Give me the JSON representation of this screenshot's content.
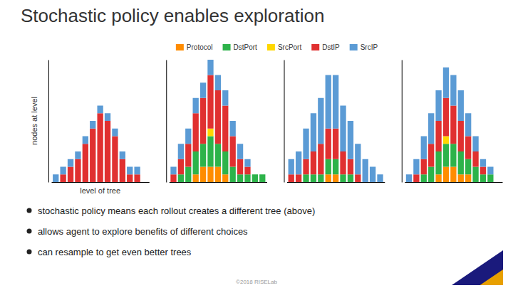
{
  "chart_data": [
    {
      "type": "bar",
      "stacked": true,
      "title": "Stochastic policy enables exploration",
      "y_label": "nodes at level",
      "x_label": "level of tree",
      "categories": [
        null,
        null,
        null,
        null,
        null,
        null,
        null,
        null,
        null,
        null,
        null,
        null,
        null
      ],
      "series": [
        {
          "name": "Protocol",
          "color": "#ff8c00",
          "values": [
            0,
            0,
            0,
            0,
            0,
            0,
            0,
            0,
            0,
            0,
            0,
            0,
            0
          ]
        },
        {
          "name": "DstPort",
          "color": "#2db34a",
          "values": [
            0,
            0,
            0,
            0,
            0,
            0,
            0,
            0,
            0,
            0,
            0,
            0,
            0
          ]
        },
        {
          "name": "SrcPort",
          "color": "#ffd700",
          "values": [
            0,
            0,
            0,
            0,
            0,
            0,
            0,
            0,
            0,
            0,
            0,
            0,
            0
          ]
        },
        {
          "name": "DstIP",
          "color": "#e03030",
          "values": [
            0,
            1,
            2,
            3,
            5,
            7,
            9,
            8,
            6,
            3,
            1,
            1,
            0
          ]
        },
        {
          "name": "SrcIP",
          "color": "#5b9bd5",
          "values": [
            1,
            1,
            1,
            1,
            1,
            1,
            1,
            1,
            1,
            1,
            1,
            1,
            0
          ]
        }
      ],
      "ylim": [
        0,
        16
      ],
      "tick_labels": false,
      "annotations": [
        "stochastic policy means each rollout creates a different tree (above)",
        "allows agent to explore benefits of different choices",
        "can resample to get even better trees"
      ],
      "footnote": "©2018 RISELab"
    },
    {
      "type": "bar",
      "stacked": true,
      "categories": [
        null,
        null,
        null,
        null,
        null,
        null,
        null,
        null,
        null,
        null,
        null,
        null,
        null
      ],
      "series": [
        {
          "color": "#ff8c00",
          "values": [
            0,
            0,
            0,
            1,
            2,
            2,
            2,
            1,
            0,
            0,
            0,
            0,
            0
          ]
        },
        {
          "color": "#2db34a",
          "values": [
            0,
            1,
            2,
            3,
            3,
            4,
            3,
            3,
            2,
            1,
            1,
            1,
            1
          ]
        },
        {
          "color": "#ffd700",
          "values": [
            0,
            0,
            0,
            0,
            0,
            1,
            0,
            0,
            0,
            0,
            0,
            0,
            0
          ]
        },
        {
          "color": "#e03030",
          "values": [
            1,
            2,
            3,
            5,
            6,
            7,
            7,
            6,
            4,
            2,
            1,
            0,
            0
          ]
        },
        {
          "color": "#5b9bd5",
          "values": [
            1,
            2,
            2,
            2,
            2,
            2,
            2,
            2,
            2,
            2,
            1,
            0,
            0
          ]
        }
      ],
      "ylim": [
        0,
        16
      ],
      "tick_labels": false
    },
    {
      "type": "bar",
      "stacked": true,
      "categories": [
        null,
        null,
        null,
        null,
        null,
        null,
        null,
        null,
        null,
        null,
        null,
        null,
        null
      ],
      "series": [
        {
          "color": "#ff8c00",
          "values": [
            0,
            0,
            0,
            0,
            0,
            1,
            1,
            0,
            0,
            0,
            0,
            0,
            0
          ]
        },
        {
          "color": "#2db34a",
          "values": [
            0,
            0,
            1,
            1,
            1,
            2,
            2,
            1,
            1,
            0,
            0,
            0,
            0
          ]
        },
        {
          "color": "#ffd700",
          "values": [
            0,
            0,
            0,
            0,
            0,
            0,
            0,
            0,
            0,
            0,
            0,
            0,
            0
          ]
        },
        {
          "color": "#e03030",
          "values": [
            1,
            1,
            2,
            3,
            4,
            4,
            4,
            3,
            2,
            1,
            0,
            0,
            0
          ]
        },
        {
          "color": "#5b9bd5",
          "values": [
            2,
            3,
            4,
            5,
            6,
            7,
            7,
            6,
            5,
            4,
            3,
            2,
            1
          ]
        }
      ],
      "ylim": [
        0,
        16
      ],
      "tick_labels": false
    },
    {
      "type": "bar",
      "stacked": true,
      "categories": [
        null,
        null,
        null,
        null,
        null,
        null,
        null,
        null,
        null,
        null,
        null,
        null,
        null
      ],
      "series": [
        {
          "color": "#ff8c00",
          "values": [
            0,
            0,
            0,
            0,
            1,
            2,
            2,
            1,
            1,
            0,
            0,
            0,
            0
          ]
        },
        {
          "color": "#2db34a",
          "values": [
            0,
            0,
            1,
            2,
            3,
            3,
            3,
            3,
            2,
            2,
            1,
            1,
            0
          ]
        },
        {
          "color": "#ffd700",
          "values": [
            0,
            0,
            0,
            0,
            0,
            1,
            0,
            0,
            0,
            0,
            0,
            0,
            0
          ]
        },
        {
          "color": "#e03030",
          "values": [
            0,
            1,
            2,
            3,
            4,
            5,
            5,
            4,
            3,
            2,
            1,
            0,
            0
          ]
        },
        {
          "color": "#5b9bd5",
          "values": [
            1,
            2,
            3,
            4,
            4,
            4,
            4,
            4,
            3,
            2,
            1,
            1,
            0
          ]
        }
      ],
      "ylim": [
        0,
        16
      ],
      "tick_labels": false
    }
  ]
}
